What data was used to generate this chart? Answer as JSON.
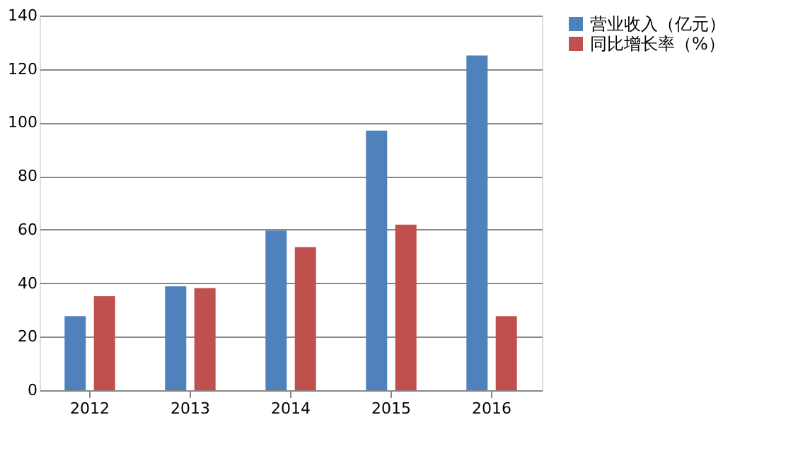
{
  "chart_data": {
    "type": "bar",
    "categories": [
      "2012",
      "2013",
      "2014",
      "2015",
      "2016"
    ],
    "series": [
      {
        "name": "营业收入（亿元）",
        "color": "#4f81bd",
        "values": [
          27.7,
          38.8,
          59.6,
          97.0,
          125.1
        ]
      },
      {
        "name": "同比增长率（%）",
        "color": "#c0504d",
        "values": [
          35.1,
          38.2,
          53.5,
          61.9,
          27.7
        ]
      }
    ],
    "ylim": [
      0,
      140
    ],
    "yticks": [
      0,
      20,
      40,
      60,
      80,
      100,
      120,
      140
    ],
    "grid": "y",
    "legend": "right"
  }
}
